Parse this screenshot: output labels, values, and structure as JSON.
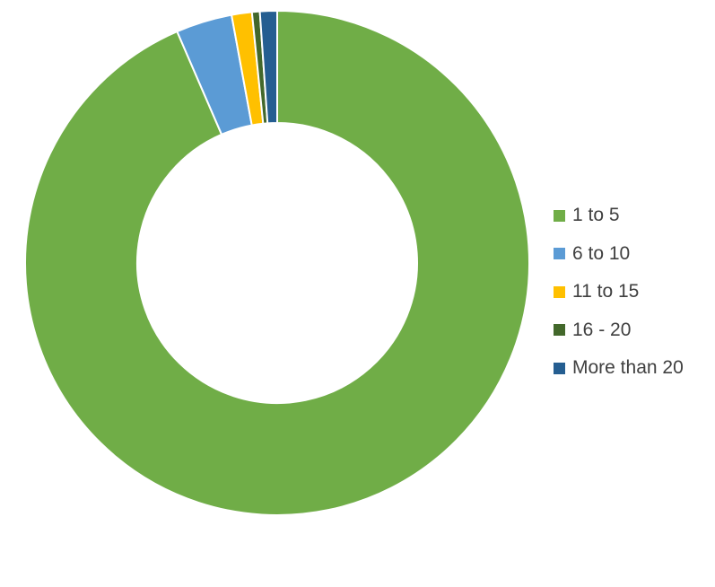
{
  "chart_data": {
    "type": "pie",
    "variant": "donut",
    "title": "",
    "categories": [
      "1 to 5",
      "6 to 10",
      "11 to 15",
      "16 - 20",
      "More than 20"
    ],
    "values": [
      93.5,
      3.6,
      1.3,
      0.5,
      1.1
    ],
    "unit": "percent (estimated)",
    "colors": [
      "#70AD47",
      "#5B9BD5",
      "#FFC000",
      "#43682B",
      "#255E91"
    ],
    "legend_position": "right"
  }
}
